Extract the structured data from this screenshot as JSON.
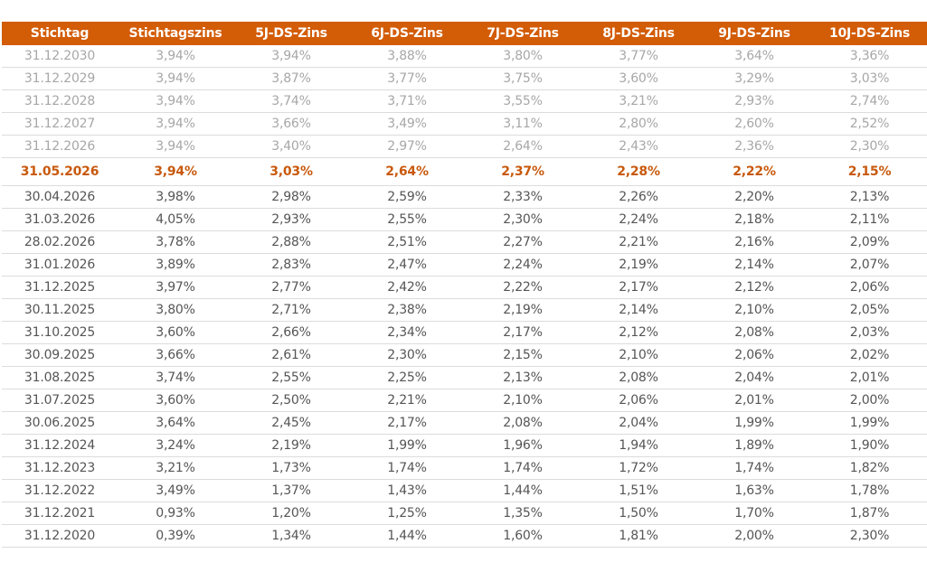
{
  "table": {
    "headers": [
      "Stichtag",
      "Stichtagszins",
      "5J-DS-Zins",
      "6J-DS-Zins",
      "7J-DS-Zins",
      "8J-DS-Zins",
      "9J-DS-Zins",
      "10J-DS-Zins"
    ],
    "rows": [
      {
        "type": "projected",
        "cells": [
          "31.12.2030",
          "3,94%",
          "3,94%",
          "3,88%",
          "3,80%",
          "3,77%",
          "3,64%",
          "3,36%"
        ]
      },
      {
        "type": "projected",
        "cells": [
          "31.12.2029",
          "3,94%",
          "3,87%",
          "3,77%",
          "3,75%",
          "3,60%",
          "3,29%",
          "3,03%"
        ]
      },
      {
        "type": "projected",
        "cells": [
          "31.12.2028",
          "3,94%",
          "3,74%",
          "3,71%",
          "3,55%",
          "3,21%",
          "2,93%",
          "2,74%"
        ]
      },
      {
        "type": "projected",
        "cells": [
          "31.12.2027",
          "3,94%",
          "3,66%",
          "3,49%",
          "3,11%",
          "2,80%",
          "2,60%",
          "2,52%"
        ]
      },
      {
        "type": "projected",
        "cells": [
          "31.12.2026",
          "3,94%",
          "3,40%",
          "2,97%",
          "2,64%",
          "2,43%",
          "2,36%",
          "2,30%"
        ]
      },
      {
        "type": "current",
        "cells": [
          "31.05.2026",
          "3,94%",
          "3,03%",
          "2,64%",
          "2,37%",
          "2,28%",
          "2,22%",
          "2,15%"
        ]
      },
      {
        "type": "historic",
        "cells": [
          "30.04.2026",
          "3,98%",
          "2,98%",
          "2,59%",
          "2,33%",
          "2,26%",
          "2,20%",
          "2,13%"
        ]
      },
      {
        "type": "historic",
        "cells": [
          "31.03.2026",
          "4,05%",
          "2,93%",
          "2,55%",
          "2,30%",
          "2,24%",
          "2,18%",
          "2,11%"
        ]
      },
      {
        "type": "historic",
        "cells": [
          "28.02.2026",
          "3,78%",
          "2,88%",
          "2,51%",
          "2,27%",
          "2,21%",
          "2,16%",
          "2,09%"
        ]
      },
      {
        "type": "historic",
        "cells": [
          "31.01.2026",
          "3,89%",
          "2,83%",
          "2,47%",
          "2,24%",
          "2,19%",
          "2,14%",
          "2,07%"
        ]
      },
      {
        "type": "historic",
        "cells": [
          "31.12.2025",
          "3,97%",
          "2,77%",
          "2,42%",
          "2,22%",
          "2,17%",
          "2,12%",
          "2,06%"
        ]
      },
      {
        "type": "historic",
        "cells": [
          "30.11.2025",
          "3,80%",
          "2,71%",
          "2,38%",
          "2,19%",
          "2,14%",
          "2,10%",
          "2,05%"
        ]
      },
      {
        "type": "historic",
        "cells": [
          "31.10.2025",
          "3,60%",
          "2,66%",
          "2,34%",
          "2,17%",
          "2,12%",
          "2,08%",
          "2,03%"
        ]
      },
      {
        "type": "historic",
        "cells": [
          "30.09.2025",
          "3,66%",
          "2,61%",
          "2,30%",
          "2,15%",
          "2,10%",
          "2,06%",
          "2,02%"
        ]
      },
      {
        "type": "historic",
        "cells": [
          "31.08.2025",
          "3,74%",
          "2,55%",
          "2,25%",
          "2,13%",
          "2,08%",
          "2,04%",
          "2,01%"
        ]
      },
      {
        "type": "historic",
        "cells": [
          "31.07.2025",
          "3,60%",
          "2,50%",
          "2,21%",
          "2,10%",
          "2,06%",
          "2,01%",
          "2,00%"
        ]
      },
      {
        "type": "historic",
        "cells": [
          "30.06.2025",
          "3,64%",
          "2,45%",
          "2,17%",
          "2,08%",
          "2,04%",
          "1,99%",
          "1,99%"
        ]
      },
      {
        "type": "historic",
        "cells": [
          "31.12.2024",
          "3,24%",
          "2,19%",
          "1,99%",
          "1,96%",
          "1,94%",
          "1,89%",
          "1,90%"
        ]
      },
      {
        "type": "historic",
        "cells": [
          "31.12.2023",
          "3,21%",
          "1,73%",
          "1,74%",
          "1,74%",
          "1,72%",
          "1,74%",
          "1,82%"
        ]
      },
      {
        "type": "historic",
        "cells": [
          "31.12.2022",
          "3,49%",
          "1,37%",
          "1,43%",
          "1,44%",
          "1,51%",
          "1,63%",
          "1,78%"
        ]
      },
      {
        "type": "historic",
        "cells": [
          "31.12.2021",
          "0,93%",
          "1,20%",
          "1,25%",
          "1,35%",
          "1,50%",
          "1,70%",
          "1,87%"
        ]
      },
      {
        "type": "historic",
        "cells": [
          "31.12.2020",
          "0,39%",
          "1,34%",
          "1,44%",
          "1,60%",
          "1,81%",
          "2,00%",
          "2,30%"
        ]
      }
    ]
  },
  "colors": {
    "header_background": "#d35c07",
    "header_text": "#ffffff",
    "current_row_text": "#c8590d",
    "projected_row_text": "#a7a7a7",
    "historic_row_text": "#555555"
  }
}
